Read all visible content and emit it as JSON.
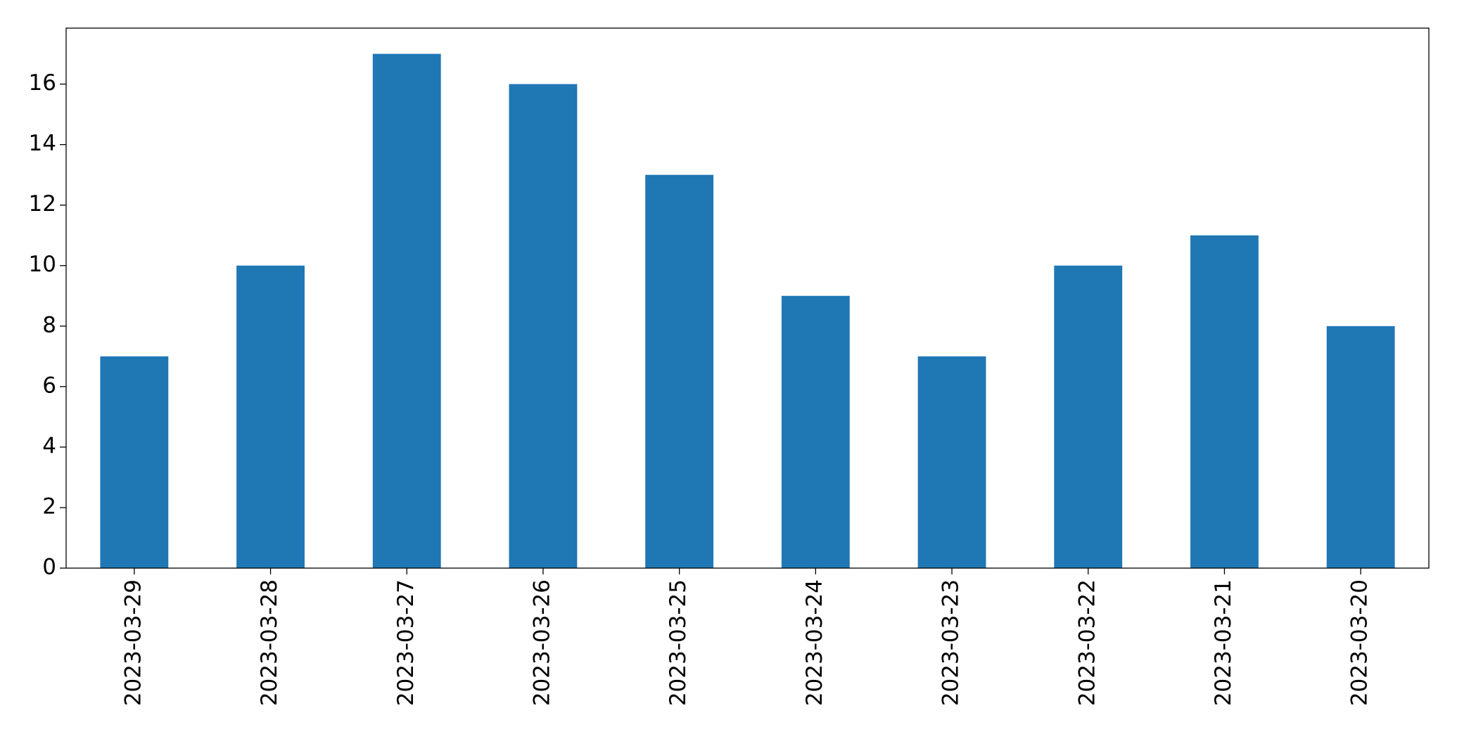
{
  "chart_data": {
    "type": "bar",
    "categories": [
      "2023-03-29",
      "2023-03-28",
      "2023-03-27",
      "2023-03-26",
      "2023-03-25",
      "2023-03-24",
      "2023-03-23",
      "2023-03-22",
      "2023-03-21",
      "2023-03-20"
    ],
    "values": [
      7,
      10,
      17,
      16,
      13,
      9,
      7,
      10,
      11,
      8
    ],
    "color": "#1f77b4",
    "ylim": [
      0,
      17.85
    ],
    "yticks": [
      0,
      2,
      4,
      6,
      8,
      10,
      12,
      14,
      16
    ],
    "grid": false
  }
}
